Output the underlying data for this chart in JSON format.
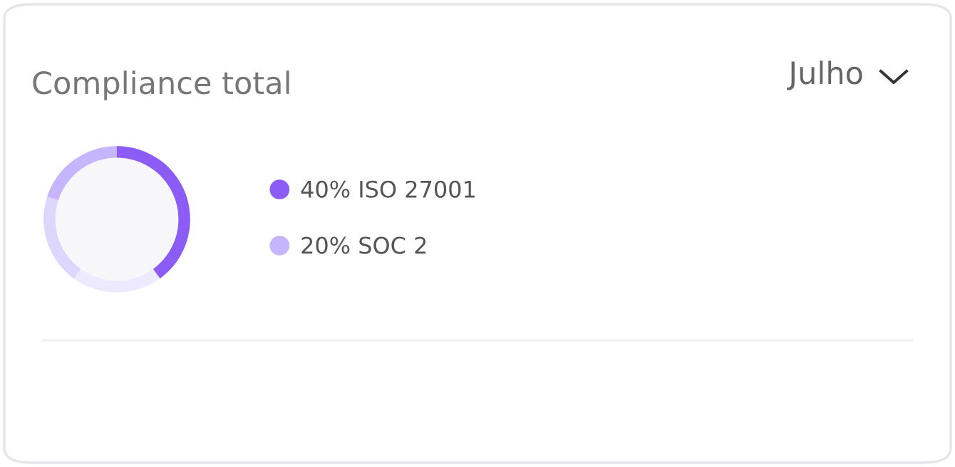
{
  "chart_data": {
    "type": "donut",
    "title": "Compliance total",
    "subtitle": "Julho",
    "categories": [
      "ISO 27001",
      null,
      null,
      "SOC 2"
    ],
    "values": [
      40,
      20,
      20,
      20
    ],
    "value_labels": [
      "40%",
      null,
      null,
      "20%"
    ],
    "colors": [
      "#8b5cf6",
      "#ede9fe",
      "#ddd6fe",
      "#c4b5fd"
    ],
    "legend": "right"
  }
}
